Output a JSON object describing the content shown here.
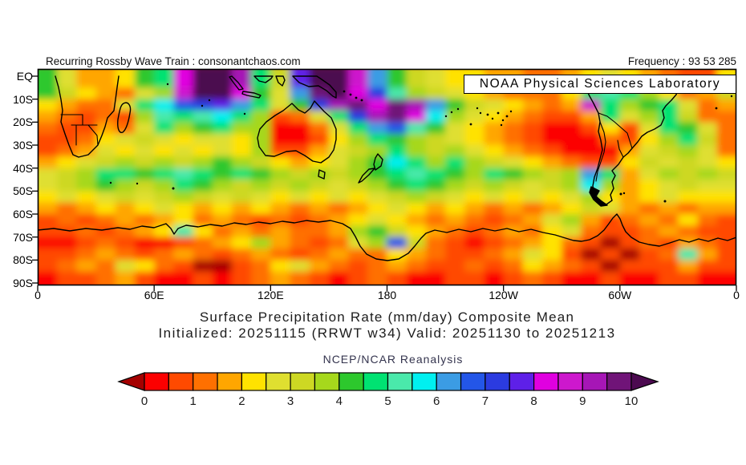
{
  "header": {
    "left": "Recurring Rossby Wave Train : consonantchaos.com",
    "right": "Frequency : 93 53 285"
  },
  "map": {
    "overlay_box": "NOAA Physical Sciences Laboratory",
    "y_ticks": [
      "EQ",
      "10S",
      "20S",
      "30S",
      "40S",
      "50S",
      "60S",
      "70S",
      "80S",
      "90S"
    ],
    "x_ticks": [
      "0",
      "60E",
      "120E",
      "180",
      "120W",
      "60W",
      "0"
    ]
  },
  "titles": {
    "line1": "Surface Precipitation Rate (mm/day) Composite Mean",
    "line2": "Initialized: 20251115 (RRWT w34) Valid: 20251130 to 20251213"
  },
  "colorbar": {
    "label": "NCEP/NCAR Reanalysis",
    "ticks": [
      "0",
      "1",
      "2",
      "3",
      "4",
      "5",
      "6",
      "7",
      "8",
      "9",
      "10"
    ],
    "interval": 0.5,
    "palette": [
      "#fc0000",
      "#ff4a00",
      "#ff7000",
      "#ffa600",
      "#ffe200",
      "#dfdf30",
      "#cdd823",
      "#a6d81c",
      "#2dc82d",
      "#00e272",
      "#4ae9ab",
      "#00f0f0",
      "#3b9ce4",
      "#2356e8",
      "#2b3be0",
      "#5e20e8",
      "#e000e0",
      "#cd18cd",
      "#a616b6",
      "#701478"
    ],
    "under_color": "#a50000",
    "over_color": "#4c0a50"
  },
  "chart_data": {
    "type": "heatmap",
    "title": "Surface Precipitation Rate (mm/day) Composite Mean",
    "subtitle": "Initialized: 20251115 (RRWT w34) Valid: 20251130 to 20251213",
    "source_label": "NCEP/NCAR Reanalysis",
    "units": "mm/day",
    "scale": {
      "min": 0,
      "max": 10,
      "interval": 0.5
    },
    "lat_axis": {
      "top": "EQ",
      "bottom": "90S",
      "tick_step_deg": 10
    },
    "lon_axis": {
      "ticks": [
        "0",
        "60E",
        "120E",
        "180",
        "120W",
        "60W",
        "0"
      ],
      "range_deg": [
        0,
        360
      ]
    },
    "grid": {
      "lon_start": 5,
      "lon_step": 10,
      "lat_start": 2.5,
      "lat_step": 5,
      "lat_hemisphere": "S",
      "values": [
        [
          4.2,
          2.7,
          1.7,
          1.7,
          2.2,
          4.2,
          4.7,
          8.2,
          10.2,
          10.2,
          9.2,
          4.7,
          3.2,
          7.7,
          10.2,
          10.2,
          8.7,
          6.2,
          4.2,
          3.2,
          2.7,
          2.2,
          2.2,
          1.7,
          1.7,
          1.2,
          1.2,
          1.7,
          2.2,
          2.7,
          2.2,
          1.7,
          1.2,
          0.7,
          0.7,
          2.2
        ],
        [
          4.2,
          3.2,
          2.2,
          1.7,
          1.2,
          2.7,
          3.7,
          8.7,
          10.2,
          10.2,
          8.2,
          4.2,
          2.7,
          6.2,
          9.7,
          10.2,
          8.2,
          7.2,
          5.2,
          3.7,
          3.2,
          2.7,
          2.2,
          1.7,
          1.2,
          1.2,
          1.2,
          2.2,
          4.7,
          5.2,
          4.7,
          3.7,
          2.2,
          1.2,
          1.7,
          3.2
        ],
        [
          2.2,
          1.7,
          1.2,
          1.2,
          2.7,
          4.7,
          5.7,
          6.7,
          7.2,
          7.7,
          6.2,
          4.7,
          2.7,
          4.2,
          7.2,
          9.2,
          9.7,
          8.2,
          9.7,
          9.2,
          6.2,
          4.2,
          3.2,
          2.7,
          2.2,
          1.7,
          1.2,
          1.7,
          8.7,
          4.7,
          3.7,
          4.2,
          4.7,
          2.7,
          1.2,
          1.7
        ],
        [
          1.7,
          1.2,
          0.7,
          1.2,
          0.7,
          3.7,
          5.2,
          4.7,
          5.2,
          5.7,
          4.7,
          3.7,
          0.7,
          1.2,
          2.7,
          4.7,
          7.2,
          9.2,
          9.7,
          8.2,
          5.7,
          3.7,
          2.7,
          2.2,
          1.7,
          1.2,
          0.7,
          0.7,
          1.7,
          4.7,
          2.7,
          3.7,
          4.7,
          3.2,
          1.2,
          1.2
        ],
        [
          1.2,
          0.7,
          0.7,
          1.7,
          1.2,
          2.7,
          4.7,
          3.7,
          4.2,
          4.7,
          3.7,
          3.7,
          0.2,
          0.2,
          1.2,
          2.7,
          4.7,
          6.2,
          6.7,
          5.2,
          4.2,
          2.7,
          2.2,
          1.7,
          1.2,
          0.7,
          0.2,
          0.2,
          0.7,
          2.2,
          0.7,
          2.7,
          4.7,
          4.2,
          2.7,
          1.2
        ],
        [
          0.7,
          0.7,
          1.2,
          2.2,
          2.7,
          3.2,
          2.7,
          2.2,
          2.7,
          2.7,
          2.2,
          3.7,
          0.2,
          0.2,
          0.7,
          2.2,
          3.7,
          4.7,
          4.2,
          3.7,
          3.2,
          2.7,
          2.2,
          1.7,
          1.2,
          0.7,
          0.2,
          0.2,
          0.2,
          1.2,
          0.7,
          2.2,
          3.7,
          4.7,
          3.2,
          1.2
        ],
        [
          0.7,
          1.2,
          1.7,
          2.7,
          2.2,
          2.7,
          2.2,
          2.7,
          2.2,
          2.7,
          2.2,
          3.7,
          0.7,
          0.7,
          1.7,
          2.7,
          3.2,
          3.7,
          4.7,
          3.7,
          3.2,
          3.7,
          2.7,
          2.2,
          1.7,
          1.2,
          0.7,
          0.2,
          0.2,
          0.2,
          1.7,
          2.7,
          3.2,
          3.7,
          2.7,
          1.2
        ],
        [
          1.7,
          2.2,
          2.7,
          3.2,
          3.7,
          3.2,
          3.7,
          3.2,
          3.7,
          4.2,
          3.7,
          3.2,
          2.2,
          1.7,
          2.2,
          2.7,
          3.7,
          4.2,
          5.7,
          4.7,
          3.7,
          4.7,
          3.7,
          3.2,
          2.7,
          2.2,
          1.7,
          1.2,
          0.7,
          0.7,
          2.2,
          3.2,
          2.7,
          3.2,
          2.7,
          2.2
        ],
        [
          2.7,
          3.2,
          3.7,
          4.7,
          4.7,
          4.2,
          4.7,
          5.2,
          4.7,
          4.2,
          4.7,
          4.2,
          3.7,
          3.2,
          3.7,
          3.2,
          3.7,
          4.2,
          4.7,
          5.2,
          4.7,
          4.2,
          3.7,
          4.7,
          4.2,
          3.7,
          3.2,
          3.7,
          6.2,
          4.7,
          1.7,
          2.7,
          3.7,
          3.2,
          3.7,
          3.2
        ],
        [
          2.7,
          3.2,
          3.7,
          4.2,
          3.7,
          3.2,
          3.7,
          4.7,
          4.2,
          3.7,
          3.2,
          3.7,
          3.2,
          3.7,
          3.2,
          2.7,
          3.2,
          3.7,
          4.2,
          4.7,
          4.2,
          3.7,
          3.2,
          3.7,
          3.2,
          2.7,
          3.2,
          3.7,
          5.7,
          3.7,
          1.7,
          2.2,
          2.7,
          3.2,
          2.7,
          2.7
        ],
        [
          2.2,
          2.7,
          2.2,
          2.7,
          3.2,
          2.7,
          3.2,
          3.7,
          3.2,
          2.7,
          3.2,
          2.7,
          2.2,
          2.7,
          2.2,
          2.7,
          2.2,
          2.7,
          3.2,
          3.7,
          3.2,
          2.7,
          2.2,
          2.7,
          2.2,
          2.7,
          2.2,
          2.7,
          3.7,
          2.2,
          1.7,
          2.2,
          2.7,
          2.2,
          2.2,
          2.2
        ],
        [
          1.7,
          1.2,
          1.7,
          2.2,
          1.7,
          2.2,
          2.7,
          2.2,
          1.7,
          2.2,
          1.7,
          2.2,
          1.7,
          1.2,
          1.7,
          1.2,
          1.7,
          2.2,
          2.7,
          2.2,
          1.7,
          2.2,
          1.7,
          1.2,
          1.7,
          1.2,
          1.7,
          2.2,
          3.2,
          2.7,
          1.7,
          1.2,
          1.7,
          1.2,
          1.7,
          1.7
        ],
        [
          0.7,
          1.2,
          0.7,
          1.2,
          1.7,
          1.2,
          1.7,
          2.2,
          1.2,
          1.7,
          1.2,
          0.7,
          1.2,
          0.7,
          1.2,
          1.7,
          2.2,
          2.7,
          2.2,
          1.7,
          1.2,
          1.7,
          1.2,
          0.7,
          1.2,
          1.7,
          2.7,
          3.7,
          1.7,
          0.7,
          1.2,
          1.7,
          1.2,
          2.2,
          1.2,
          0.7
        ],
        [
          0.7,
          0.7,
          1.2,
          0.7,
          1.2,
          1.7,
          2.2,
          5.2,
          2.2,
          1.2,
          1.7,
          1.2,
          1.7,
          1.2,
          1.2,
          1.7,
          3.7,
          4.2,
          3.2,
          2.2,
          1.7,
          1.2,
          0.7,
          1.2,
          1.7,
          1.2,
          2.2,
          2.7,
          1.2,
          0.7,
          0.7,
          1.2,
          1.7,
          1.2,
          0.7,
          0.7
        ],
        [
          0.2,
          0.2,
          0.7,
          1.2,
          0.7,
          0.2,
          0.2,
          0.7,
          1.2,
          1.7,
          2.2,
          3.7,
          1.7,
          1.2,
          0.7,
          1.2,
          2.7,
          3.7,
          6.7,
          3.2,
          1.2,
          0.7,
          0.2,
          0.7,
          1.2,
          1.7,
          2.2,
          1.2,
          0.7,
          -0.2,
          0.7,
          1.2,
          0.7,
          1.7,
          1.2,
          0.7
        ],
        [
          0.7,
          0.7,
          1.2,
          1.7,
          1.2,
          0.7,
          1.2,
          1.7,
          1.2,
          0.7,
          1.2,
          1.7,
          1.2,
          0.7,
          1.2,
          1.7,
          1.2,
          1.2,
          2.2,
          1.7,
          1.2,
          0.7,
          0.7,
          1.2,
          1.7,
          2.7,
          2.2,
          0.7,
          -0.2,
          0.7,
          -0.2,
          0.7,
          1.2,
          5.2,
          1.7,
          0.7
        ],
        [
          0.7,
          1.2,
          1.7,
          1.2,
          2.7,
          2.2,
          1.2,
          0.7,
          -0.2,
          -0.2,
          0.7,
          1.2,
          2.2,
          2.7,
          1.7,
          1.2,
          0.7,
          1.2,
          1.7,
          1.2,
          0.7,
          0.7,
          1.2,
          0.7,
          1.2,
          2.2,
          1.7,
          1.2,
          0.7,
          -0.2,
          0.7,
          0.7,
          0.7,
          1.7,
          0.7,
          0.7
        ],
        [
          0.2,
          0.7,
          0.7,
          1.2,
          1.7,
          0.7,
          0.2,
          0.2,
          0.7,
          0.2,
          0.7,
          1.2,
          1.7,
          1.2,
          0.7,
          0.2,
          0.7,
          1.2,
          0.7,
          0.2,
          0.2,
          0.7,
          0.7,
          0.2,
          0.7,
          1.2,
          0.7,
          0.2,
          0.2,
          0.7,
          0.2,
          0.2,
          0.7,
          0.7,
          0.2,
          0.2
        ]
      ]
    }
  }
}
